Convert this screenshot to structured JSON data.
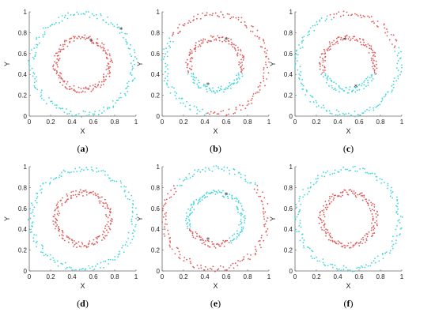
{
  "colors": {
    "outer_color_cyan": "#3ed6dc",
    "inner_color_red": "#e05656",
    "center_marker": "#333333"
  },
  "chart_data": [
    {
      "type": "scatter",
      "caption": "(a)",
      "caption_letter": "a",
      "xlabel": "X",
      "ylabel": "Y",
      "xlim": [
        0,
        1
      ],
      "ylim": [
        0,
        1
      ],
      "xticks": [
        "0",
        "0.2",
        "0.4",
        "0.6",
        "0.8",
        "1"
      ],
      "yticks": [
        "0",
        "0.2",
        "0.4",
        "0.6",
        "0.8",
        "1"
      ],
      "rings": [
        {
          "role": "inner",
          "color": "#e05656",
          "cx": 0.5,
          "cy": 0.5,
          "r": 0.25,
          "n": 170
        },
        {
          "role": "outer",
          "color": "#3ed6dc",
          "cx": 0.5,
          "cy": 0.5,
          "r": 0.48,
          "n": 170
        }
      ],
      "centers": [
        {
          "x": 0.58,
          "y": 0.72
        },
        {
          "x": 0.86,
          "y": 0.83
        }
      ]
    },
    {
      "type": "scatter",
      "caption": "(b)",
      "caption_letter": "b",
      "xlabel": "X",
      "ylabel": "Y",
      "xlim": [
        0,
        1
      ],
      "ylim": [
        0,
        1
      ],
      "xticks": [
        "0",
        "0.2",
        "0.4",
        "0.6",
        "0.8",
        "1"
      ],
      "yticks": [
        "0",
        "0.2",
        "0.4",
        "0.6",
        "0.8",
        "1"
      ],
      "rings": [
        {
          "role": "inner",
          "color": "#3ed6dc",
          "cx": 0.5,
          "cy": 0.5,
          "r": 0.25,
          "n": 170,
          "arc_deg": [
            200,
            340
          ],
          "rest_color": "#e05656"
        },
        {
          "role": "outer",
          "color": "#e05656",
          "cx": 0.5,
          "cy": 0.5,
          "r": 0.48,
          "n": 170,
          "arc_deg": [
            150,
            260
          ],
          "arc_color": "#3ed6dc"
        }
      ],
      "centers": [
        {
          "x": 0.6,
          "y": 0.73
        },
        {
          "x": 0.43,
          "y": 0.3
        }
      ]
    },
    {
      "type": "scatter",
      "caption": "(c)",
      "caption_letter": "c",
      "xlabel": "X",
      "ylabel": "Y",
      "xlim": [
        0,
        1
      ],
      "ylim": [
        0,
        1
      ],
      "xticks": [
        "0",
        "0.2",
        "0.4",
        "0.6",
        "0.8",
        "1"
      ],
      "yticks": [
        "0",
        "0.2",
        "0.4",
        "0.6",
        "0.8",
        "1"
      ],
      "rings": [
        {
          "role": "inner",
          "color": "#e05656",
          "cx": 0.5,
          "cy": 0.5,
          "r": 0.25,
          "n": 170,
          "arc_deg": [
            200,
            340
          ],
          "arc_color": "#3ed6dc"
        },
        {
          "role": "outer",
          "color": "#3ed6dc",
          "cx": 0.5,
          "cy": 0.5,
          "r": 0.48,
          "n": 170,
          "arc_deg": [
            20,
            110
          ],
          "arc_color": "#e05656"
        }
      ],
      "centers": [
        {
          "x": 0.47,
          "y": 0.73
        },
        {
          "x": 0.57,
          "y": 0.28
        }
      ]
    },
    {
      "type": "scatter",
      "caption": "(d)",
      "caption_letter": "d",
      "xlabel": "X",
      "ylabel": "Y",
      "xlim": [
        0,
        1
      ],
      "ylim": [
        0,
        1
      ],
      "xticks": [
        "0",
        "0.2",
        "0.4",
        "0.6",
        "0.8",
        "1"
      ],
      "yticks": [
        "0",
        "0.2",
        "0.4",
        "0.6",
        "0.8",
        "1"
      ],
      "rings": [
        {
          "role": "inner",
          "color": "#e05656",
          "cx": 0.5,
          "cy": 0.5,
          "r": 0.25,
          "n": 170
        },
        {
          "role": "outer",
          "color": "#3ed6dc",
          "cx": 0.5,
          "cy": 0.5,
          "r": 0.48,
          "n": 170
        }
      ],
      "centers": []
    },
    {
      "type": "scatter",
      "caption": "(e)",
      "caption_letter": "e",
      "xlabel": "X",
      "ylabel": "Y",
      "xlim": [
        0,
        1
      ],
      "ylim": [
        0,
        1
      ],
      "xticks": [
        "0",
        "0.2",
        "0.4",
        "0.6",
        "0.8",
        "1"
      ],
      "yticks": [
        "0",
        "0.2",
        "0.4",
        "0.6",
        "0.8",
        "1"
      ],
      "rings": [
        {
          "role": "inner",
          "color": "#3ed6dc",
          "cx": 0.5,
          "cy": 0.5,
          "r": 0.25,
          "n": 170,
          "arc_deg": [
            200,
            300
          ],
          "arc_color": "#e05656"
        },
        {
          "role": "outer",
          "color": "#e05656",
          "cx": 0.5,
          "cy": 0.5,
          "r": 0.48,
          "n": 170,
          "arc_deg": [
            40,
            140
          ],
          "arc_color": "#3ed6dc"
        }
      ],
      "centers": [
        {
          "x": 0.6,
          "y": 0.73
        },
        {
          "x": 0.43,
          "y": 0.3
        }
      ]
    },
    {
      "type": "scatter",
      "caption": "(f)",
      "caption_letter": "f",
      "xlabel": "X",
      "ylabel": "Y",
      "xlim": [
        0,
        1
      ],
      "ylim": [
        0,
        1
      ],
      "xticks": [
        "0",
        "0.2",
        "0.4",
        "0.6",
        "0.8",
        "1"
      ],
      "yticks": [
        "0",
        "0.2",
        "0.4",
        "0.6",
        "0.8",
        "1"
      ],
      "rings": [
        {
          "role": "inner",
          "color": "#e05656",
          "cx": 0.5,
          "cy": 0.5,
          "r": 0.25,
          "n": 170
        },
        {
          "role": "outer",
          "color": "#3ed6dc",
          "cx": 0.5,
          "cy": 0.5,
          "r": 0.48,
          "n": 170
        }
      ],
      "centers": []
    }
  ]
}
